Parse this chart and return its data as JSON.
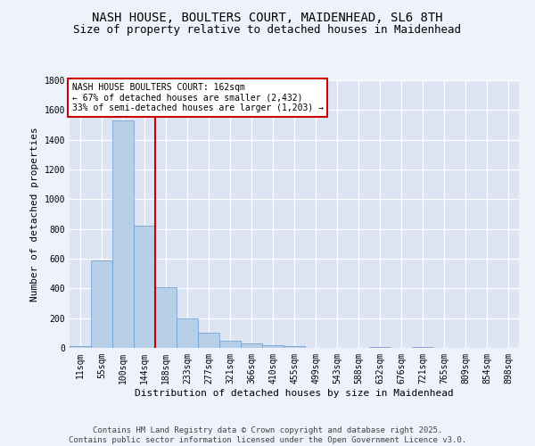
{
  "title_line1": "NASH HOUSE, BOULTERS COURT, MAIDENHEAD, SL6 8TH",
  "title_line2": "Size of property relative to detached houses in Maidenhead",
  "xlabel": "Distribution of detached houses by size in Maidenhead",
  "ylabel": "Number of detached properties",
  "categories": [
    "11sqm",
    "55sqm",
    "100sqm",
    "144sqm",
    "188sqm",
    "233sqm",
    "277sqm",
    "321sqm",
    "366sqm",
    "410sqm",
    "455sqm",
    "499sqm",
    "543sqm",
    "588sqm",
    "632sqm",
    "676sqm",
    "721sqm",
    "765sqm",
    "809sqm",
    "854sqm",
    "898sqm"
  ],
  "values": [
    10,
    590,
    1530,
    820,
    410,
    200,
    100,
    50,
    30,
    20,
    10,
    0,
    0,
    0,
    5,
    0,
    5,
    0,
    0,
    0,
    0
  ],
  "bar_color": "#b8cfe8",
  "bar_edge_color": "#6699cc",
  "vline_color": "#cc0000",
  "vline_x_index": 3,
  "ylim": [
    0,
    1800
  ],
  "yticks": [
    0,
    200,
    400,
    600,
    800,
    1000,
    1200,
    1400,
    1600,
    1800
  ],
  "annotation_box_text": "NASH HOUSE BOULTERS COURT: 162sqm\n← 67% of detached houses are smaller (2,432)\n33% of semi-detached houses are larger (1,203) →",
  "annotation_box_facecolor": "#ffffff",
  "annotation_box_edgecolor": "#cc0000",
  "footer_text": "Contains HM Land Registry data © Crown copyright and database right 2025.\nContains public sector information licensed under the Open Government Licence v3.0.",
  "background_color": "#eef2fb",
  "plot_bg_color": "#dde5f5",
  "grid_color": "#ffffff",
  "title_fontsize": 10,
  "subtitle_fontsize": 9,
  "tick_fontsize": 7,
  "axis_label_fontsize": 8,
  "annotation_fontsize": 7,
  "footer_fontsize": 6.5
}
